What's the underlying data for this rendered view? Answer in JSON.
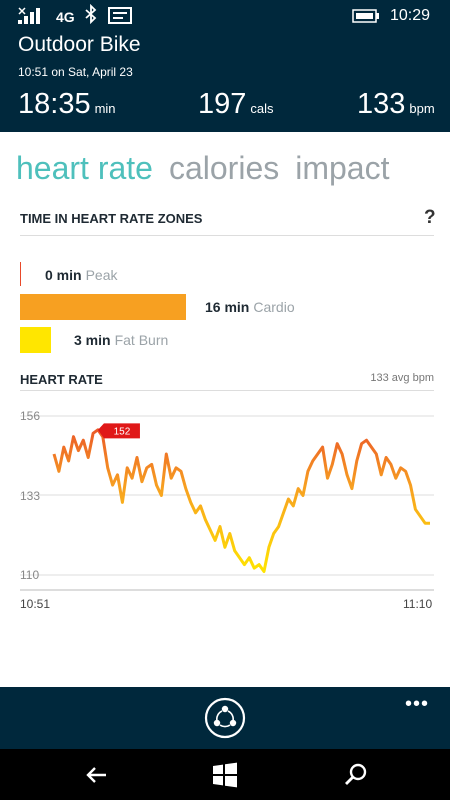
{
  "status_bar": {
    "network": "4G",
    "time": "10:29",
    "icons": [
      "signal-icon",
      "bluetooth-icon",
      "message-icon",
      "battery-icon"
    ]
  },
  "activity": {
    "title": "Outdoor Bike",
    "date": "10:51 on Sat, April 23",
    "duration_value": "18:35",
    "duration_unit": "min",
    "calories_value": "197",
    "calories_unit": "cals",
    "bpm_value": "133",
    "bpm_unit": "bpm"
  },
  "tabs": [
    "heart rate",
    "calories",
    "impact"
  ],
  "active_tab": 0,
  "zones": {
    "title": "TIME IN HEART RATE ZONES",
    "help_label": "?",
    "items": [
      {
        "minutes": "0 min",
        "name": "Peak",
        "value": 0,
        "color": "#e8492a"
      },
      {
        "minutes": "16 min",
        "name": "Cardio",
        "value": 16,
        "color": "#f7a021"
      },
      {
        "minutes": "3 min",
        "name": "Fat Burn",
        "value": 3,
        "color": "#ffe600"
      }
    ]
  },
  "heart_rate": {
    "title": "HEART RATE",
    "avg_label": "133 avg bpm",
    "peak_label": "152"
  },
  "chart_data": {
    "type": "line",
    "title": "HEART RATE",
    "yticks": [
      "156",
      "133",
      "110"
    ],
    "ylim": [
      110,
      156
    ],
    "xticks": [
      "10:51",
      "11:10"
    ],
    "y": [
      145,
      140,
      147,
      143,
      150,
      146,
      149,
      144,
      151,
      152,
      150,
      141,
      136,
      139,
      131,
      141,
      138,
      144,
      137,
      141,
      142,
      136,
      133,
      145,
      138,
      141,
      140,
      135,
      131,
      128,
      130,
      126,
      123,
      120,
      124,
      118,
      122,
      117,
      115,
      113,
      115,
      112,
      113,
      111,
      118,
      122,
      124,
      128,
      132,
      130,
      135,
      133,
      140,
      143,
      145,
      147,
      138,
      142,
      148,
      145,
      139,
      135,
      143,
      148,
      149,
      147,
      145,
      139,
      144,
      142,
      138,
      141,
      140,
      136,
      129,
      127,
      125,
      125
    ]
  },
  "app_bar": {
    "more_label": "•••"
  },
  "nav_bar": {
    "icons": [
      "back-icon",
      "windows-icon",
      "search-icon"
    ]
  }
}
